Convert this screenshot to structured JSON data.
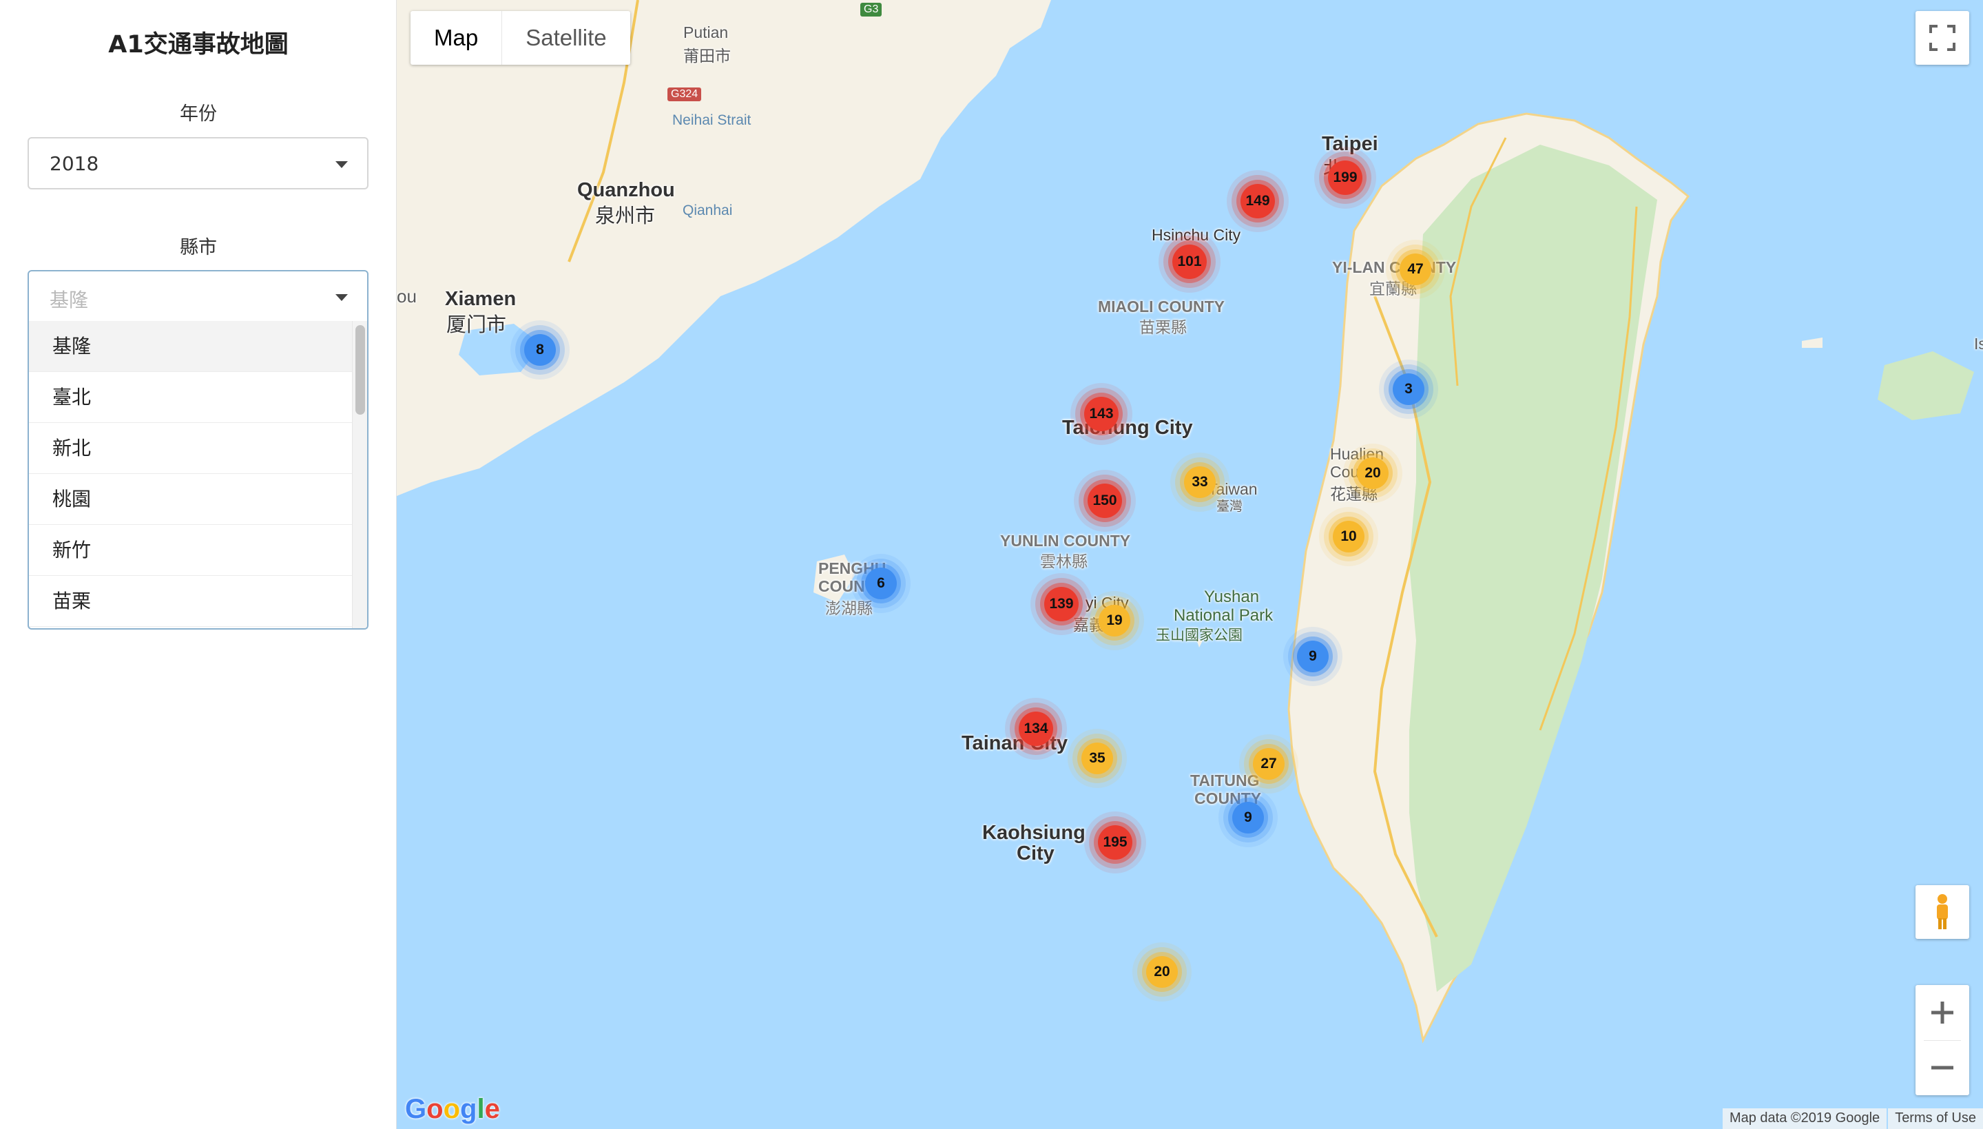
{
  "sidebar": {
    "title": "A1交通事故地圖",
    "year": {
      "label": "年份",
      "value": "2018"
    },
    "county": {
      "label": "縣市",
      "placeholder": "基隆",
      "options": [
        "基隆",
        "臺北",
        "新北",
        "桃園",
        "新竹",
        "苗栗"
      ]
    }
  },
  "map": {
    "type_buttons": {
      "map": "Map",
      "satellite": "Satellite"
    },
    "selected_type": "Map",
    "places": {
      "putian": "Putian",
      "putian_zh": "莆田市",
      "neihai": "Neihai Strait",
      "quanzhou": "Quanzhou",
      "quanzhou_zh": "泉州市",
      "qianhai": "Qianhai",
      "xiamen": "Xiamen",
      "xiamen_zh": "厦门市",
      "ou": "ou",
      "g3": "G3",
      "g324": "G324",
      "taipei": "Taipei",
      "taipei_zh": "北",
      "hsinchu": "Hsinchu City",
      "yilan": "YI-LAN COUNTY",
      "yilan_zh": "宜蘭縣",
      "miaoli": "MIAOLI COUNTY",
      "miaoli_zh": "苗栗縣",
      "taichung": "Taichung City",
      "taiwan": "Taiwan",
      "taiwan_zh": "臺灣",
      "hualien": "Hualien",
      "hualien_zh": "花蓮縣",
      "hualien_county": "County",
      "yunlin": "YUNLIN COUNTY",
      "yunlin_zh": "雲林縣",
      "penghu1": "PENGHU",
      "penghu2": "COUNTY",
      "penghu_zh": "澎湖縣",
      "chiayi": "yi City",
      "chiayi_zh": "嘉義",
      "yushan1": "Yushan",
      "yushan2": "National Park",
      "yushan_zh": "玉山國家公園",
      "tainan": "Tainan City",
      "kaohsiung1": "Kaohsiung",
      "kaohsiung2": "City",
      "taitung1": "TAITUNG",
      "taitung2": "COUNTY",
      "is": "Is"
    },
    "clusters": [
      {
        "count": "8",
        "level": "blue"
      },
      {
        "count": "199",
        "level": "red"
      },
      {
        "count": "149",
        "level": "red"
      },
      {
        "count": "101",
        "level": "red"
      },
      {
        "count": "47",
        "level": "yellow"
      },
      {
        "count": "143",
        "level": "red"
      },
      {
        "count": "3",
        "level": "blue"
      },
      {
        "count": "33",
        "level": "yellow"
      },
      {
        "count": "20",
        "level": "yellow"
      },
      {
        "count": "150",
        "level": "red"
      },
      {
        "count": "10",
        "level": "yellow"
      },
      {
        "count": "6",
        "level": "blue"
      },
      {
        "count": "139",
        "level": "red"
      },
      {
        "count": "19",
        "level": "yellow"
      },
      {
        "count": "9",
        "level": "blue"
      },
      {
        "count": "134",
        "level": "red"
      },
      {
        "count": "35",
        "level": "yellow"
      },
      {
        "count": "27",
        "level": "yellow"
      },
      {
        "count": "9",
        "level": "blue"
      },
      {
        "count": "195",
        "level": "red"
      },
      {
        "count": "20",
        "level": "yellow"
      }
    ],
    "google": "Google",
    "attribution": "Map data ©2019 Google",
    "terms": "Terms of Use",
    "icons": {
      "fullscreen": "fullscreen-icon",
      "pegman": "pegman-icon",
      "zoom_in": "plus-icon",
      "zoom_out": "minus-icon"
    },
    "colors": {
      "water": "#aadaff",
      "land": "#f5f1e6",
      "forest": "#cfe8c2",
      "red": "#ea3b2e",
      "yellow": "#f7b92e",
      "blue": "#3f8ef1"
    }
  }
}
